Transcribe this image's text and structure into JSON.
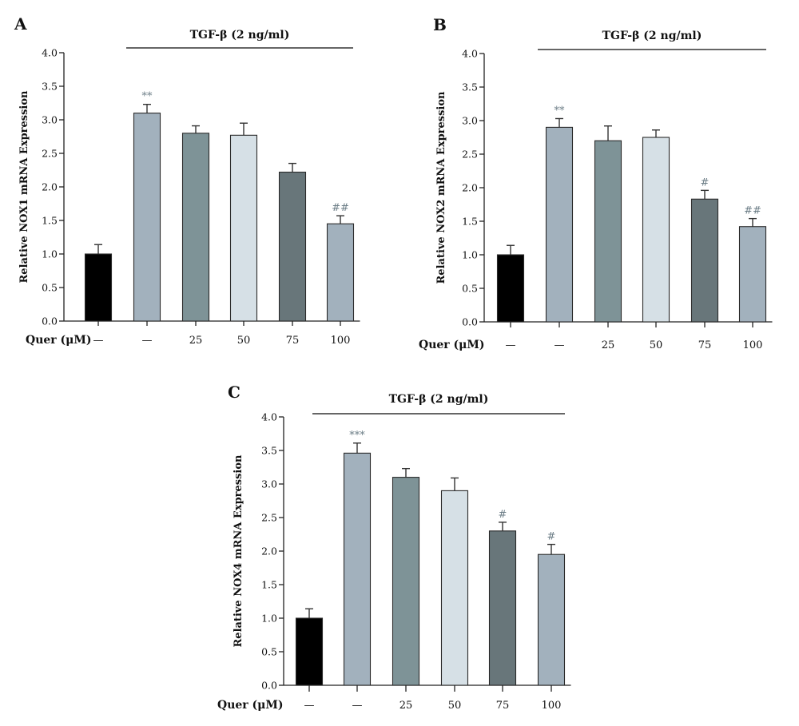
{
  "chart_data": [
    {
      "panel": "A",
      "type": "bar",
      "treatment_label": "TGF-β (2 ng/ml)",
      "ylabel": "Relative NOX1 mRNA Expression",
      "xlabel": "Quer (μM)",
      "categories": [
        "—",
        "—",
        "25",
        "50",
        "75",
        "100"
      ],
      "values": [
        1.0,
        3.1,
        2.8,
        2.77,
        2.22,
        1.45
      ],
      "errors": [
        0.14,
        0.13,
        0.11,
        0.18,
        0.13,
        0.12
      ],
      "annotations": [
        "",
        "**",
        "",
        "",
        "",
        "##"
      ],
      "ylim": [
        0,
        4
      ],
      "yticks": [
        "0.0",
        "0.5",
        "1.0",
        "1.5",
        "2.0",
        "2.5",
        "3.0",
        "3.5",
        "4.0"
      ],
      "colors": [
        "#000000",
        "#a2b1bd",
        "#7e9397",
        "#d6e0e6",
        "#68767a",
        "#a2b1bd"
      ]
    },
    {
      "panel": "B",
      "type": "bar",
      "treatment_label": "TGF-β (2 ng/ml)",
      "ylabel": "Relative NOX2 mRNA Expression",
      "xlabel": "Quer (μM)",
      "categories": [
        "—",
        "—",
        "25",
        "50",
        "75",
        "100"
      ],
      "values": [
        1.0,
        2.9,
        2.7,
        2.75,
        1.83,
        1.42
      ],
      "errors": [
        0.14,
        0.13,
        0.22,
        0.11,
        0.13,
        0.12
      ],
      "annotations": [
        "",
        "**",
        "",
        "",
        "#",
        "##"
      ],
      "ylim": [
        0,
        4
      ],
      "yticks": [
        "0.0",
        "0.5",
        "1.0",
        "1.5",
        "2.0",
        "2.5",
        "3.0",
        "3.5",
        "4.0"
      ],
      "colors": [
        "#000000",
        "#a2b1bd",
        "#7e9397",
        "#d6e0e6",
        "#68767a",
        "#a2b1bd"
      ]
    },
    {
      "panel": "C",
      "type": "bar",
      "treatment_label": "TGF-β (2 ng/ml)",
      "ylabel": "Relative NOX4 mRNA Expression",
      "xlabel": "Quer (μM)",
      "categories": [
        "—",
        "—",
        "25",
        "50",
        "75",
        "100"
      ],
      "values": [
        1.0,
        3.46,
        3.1,
        2.9,
        2.3,
        1.95
      ],
      "errors": [
        0.14,
        0.15,
        0.13,
        0.19,
        0.13,
        0.15
      ],
      "annotations": [
        "",
        "***",
        "",
        "",
        "#",
        "#"
      ],
      "ylim": [
        0,
        4
      ],
      "yticks": [
        "0.0",
        "0.5",
        "1.0",
        "1.5",
        "2.0",
        "2.5",
        "3.0",
        "3.5",
        "4.0"
      ],
      "colors": [
        "#000000",
        "#a2b1bd",
        "#7e9397",
        "#d6e0e6",
        "#68767a",
        "#a2b1bd"
      ]
    }
  ]
}
